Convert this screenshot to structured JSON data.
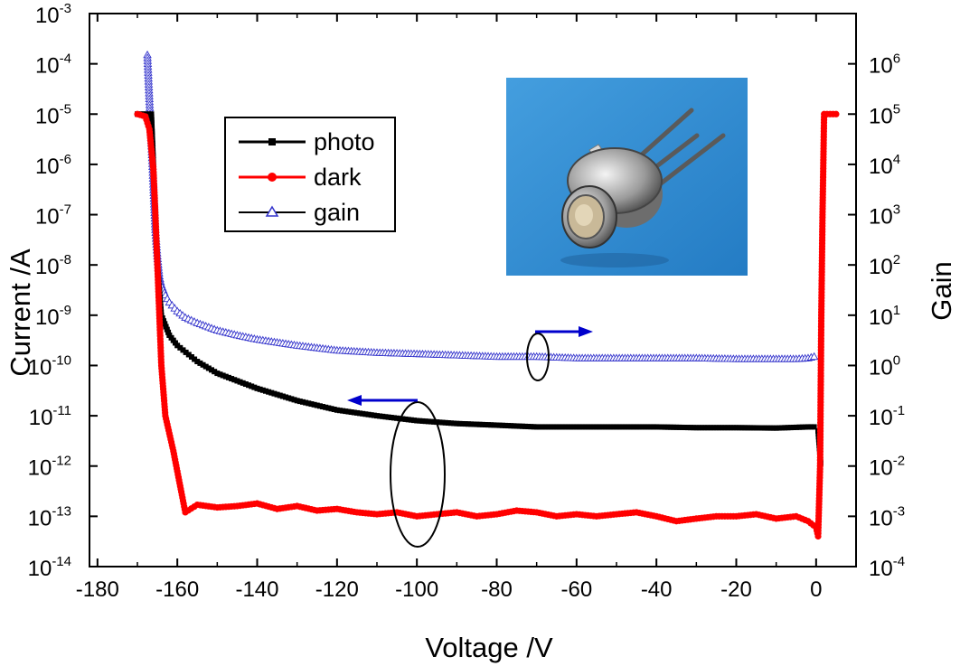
{
  "chart_data": {
    "type": "line",
    "title": "",
    "xlabel": "Voltage /V",
    "ylabel_left": "Current /A",
    "ylabel_right": "Gain",
    "xlim": [
      -182,
      10
    ],
    "ylim_left": [
      1e-14,
      0.001
    ],
    "ylim_right": [
      0.0001,
      10000000.0
    ],
    "y_scale": "log",
    "grid": false,
    "legend_position": "upper-left",
    "x_ticks": [
      -180,
      -160,
      -140,
      -120,
      -100,
      -80,
      -60,
      -40,
      -20,
      0
    ],
    "x_tick_labels": [
      "-180",
      "-160",
      "-140",
      "-120",
      "-100",
      "-80",
      "-60",
      "-40",
      "-20",
      "0"
    ],
    "y_left_ticks": [
      {
        "base": "10",
        "exp": "-14"
      },
      {
        "base": "10",
        "exp": "-13"
      },
      {
        "base": "10",
        "exp": "-12"
      },
      {
        "base": "10",
        "exp": "-11"
      },
      {
        "base": "10",
        "exp": "-10"
      },
      {
        "base": "10",
        "exp": "-9"
      },
      {
        "base": "10",
        "exp": "-8"
      },
      {
        "base": "10",
        "exp": "-7"
      },
      {
        "base": "10",
        "exp": "-6"
      },
      {
        "base": "10",
        "exp": "-5"
      },
      {
        "base": "10",
        "exp": "-4"
      },
      {
        "base": "10",
        "exp": "-3"
      }
    ],
    "y_right_ticks": [
      {
        "base": "10",
        "exp": "-4"
      },
      {
        "base": "10",
        "exp": "-3"
      },
      {
        "base": "10",
        "exp": "-2"
      },
      {
        "base": "10",
        "exp": "-1"
      },
      {
        "base": "10",
        "exp": "0"
      },
      {
        "base": "10",
        "exp": "1"
      },
      {
        "base": "10",
        "exp": "2"
      },
      {
        "base": "10",
        "exp": "3"
      },
      {
        "base": "10",
        "exp": "4"
      },
      {
        "base": "10",
        "exp": "5"
      },
      {
        "base": "10",
        "exp": "6"
      }
    ],
    "series": [
      {
        "name": "photo",
        "axis": "left",
        "color": "#000000",
        "marker": "square",
        "x": [
          -170,
          -166.5,
          -166,
          -165.5,
          -165,
          -164,
          -162,
          -160,
          -155,
          -150,
          -140,
          -130,
          -120,
          -110,
          -100,
          -90,
          -80,
          -70,
          -60,
          -50,
          -40,
          -30,
          -20,
          -10,
          -2,
          -0.5,
          0.5,
          1.2
        ],
        "y": [
          1e-05,
          1e-05,
          1e-06,
          1e-07,
          1e-08,
          1e-09,
          4e-10,
          2.5e-10,
          1.2e-10,
          7e-11,
          3.5e-11,
          2e-11,
          1.3e-11,
          1e-11,
          8e-12,
          7e-12,
          6.5e-12,
          6e-12,
          6e-12,
          6e-12,
          6e-12,
          5.8e-12,
          5.8e-12,
          5.7e-12,
          6e-12,
          6e-12,
          5e-12,
          1e-12
        ]
      },
      {
        "name": "dark",
        "axis": "left",
        "color": "#ff0000",
        "marker": "circle",
        "x": [
          -170,
          -168,
          -167,
          -166,
          -165.5,
          -165,
          -164.5,
          -164,
          -163,
          -161,
          -158,
          -155,
          -150,
          -145,
          -140,
          -135,
          -130,
          -125,
          -120,
          -115,
          -110,
          -105,
          -100,
          -95,
          -90,
          -85,
          -80,
          -75,
          -70,
          -65,
          -60,
          -55,
          -50,
          -45,
          -40,
          -35,
          -30,
          -25,
          -20,
          -15,
          -10,
          -5,
          -2,
          0,
          0.5,
          1,
          1.3,
          1.6,
          2,
          5
        ],
        "y": [
          1e-05,
          9e-06,
          5e-06,
          8e-07,
          1e-07,
          1e-08,
          1e-09,
          1e-10,
          1e-11,
          2e-12,
          1.2e-13,
          1.7e-13,
          1.5e-13,
          1.6e-13,
          1.8e-13,
          1.4e-13,
          1.6e-13,
          1.3e-13,
          1.4e-13,
          1.2e-13,
          1.1e-13,
          1.2e-13,
          1e-13,
          1.1e-13,
          1.2e-13,
          1e-13,
          1.1e-13,
          1.3e-13,
          1.2e-13,
          1e-13,
          1.1e-13,
          1e-13,
          1.1e-13,
          1.2e-13,
          1e-13,
          8e-14,
          9e-14,
          1e-13,
          1e-13,
          1.1e-13,
          9e-14,
          1e-13,
          8e-14,
          6e-14,
          4e-14,
          1e-12,
          1e-09,
          1e-07,
          1e-05,
          1e-05
        ]
      },
      {
        "name": "gain",
        "axis": "right",
        "color": "#3333cc",
        "marker": "triangle-open",
        "x": [
          -167.5,
          -167,
          -166.5,
          -166,
          -165.5,
          -165,
          -164.5,
          -164,
          -163,
          -162,
          -160,
          -158,
          -155,
          -150,
          -145,
          -140,
          -130,
          -120,
          -110,
          -100,
          -90,
          -80,
          -70,
          -60,
          -50,
          -40,
          -30,
          -20,
          -10,
          -5,
          -2,
          -0.5,
          0.3
        ],
        "y": [
          1500000,
          200000,
          30000,
          4000,
          500,
          150,
          60,
          40,
          25,
          18,
          12,
          9,
          7,
          5,
          4,
          3.3,
          2.5,
          2,
          1.8,
          1.7,
          1.6,
          1.5,
          1.5,
          1.4,
          1.4,
          1.4,
          1.4,
          1.35,
          1.35,
          1.35,
          1.4,
          1.5,
          1.3
        ]
      }
    ],
    "annotations": {
      "arrow_left_color": "#0000cc",
      "arrow_right_color": "#0000cc",
      "inset": "photograph of packaged photodiode (TO-can with three leads) on blue background"
    }
  }
}
